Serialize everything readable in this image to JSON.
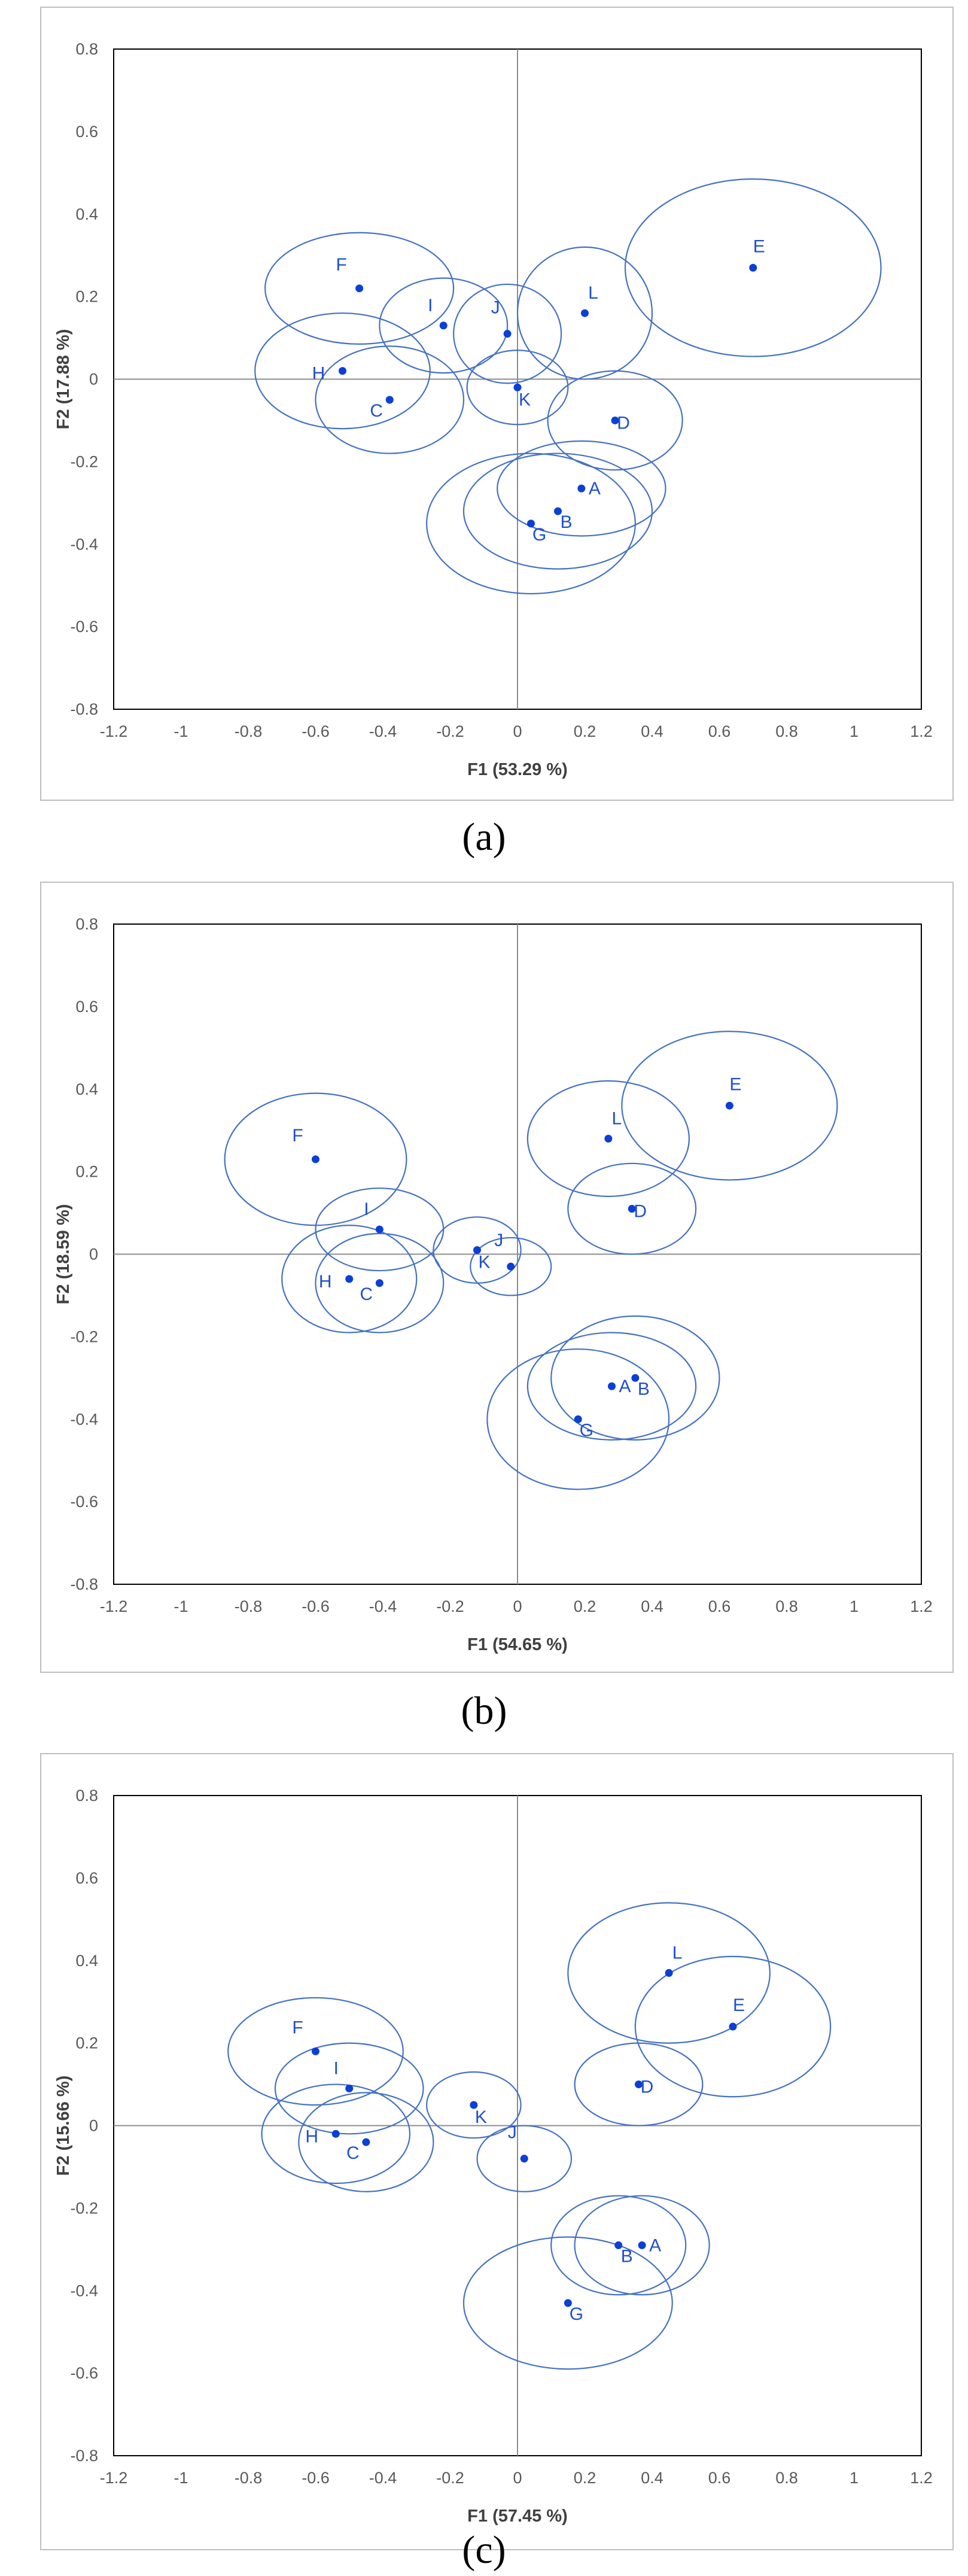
{
  "chart_data": [
    {
      "type": "scatter",
      "caption": "(a)",
      "xlabel": "F1 (53.29 %)",
      "ylabel": "F2 (17.88 %)",
      "xlim": [
        -1.2,
        1.2
      ],
      "ylim": [
        -0.8,
        0.8
      ],
      "xticks": [
        "-1.2",
        "-1",
        "-0.8",
        "-0.6",
        "-0.4",
        "-0.2",
        "0",
        "0.2",
        "0.4",
        "0.6",
        "0.8",
        "1",
        "1.2"
      ],
      "yticks": [
        "-0.8",
        "-0.6",
        "-0.4",
        "-0.2",
        "0",
        "0.2",
        "0.4",
        "0.6",
        "0.8"
      ],
      "points": [
        {
          "label": "A",
          "x": 0.19,
          "y": -0.265,
          "rx": 0.25,
          "ry": 0.115
        },
        {
          "label": "B",
          "x": 0.12,
          "y": -0.32,
          "rx": 0.28,
          "ry": 0.14
        },
        {
          "label": "C",
          "x": -0.38,
          "y": -0.05,
          "rx": 0.22,
          "ry": 0.13
        },
        {
          "label": "D",
          "x": 0.29,
          "y": -0.1,
          "rx": 0.2,
          "ry": 0.12
        },
        {
          "label": "E",
          "x": 0.7,
          "y": 0.27,
          "rx": 0.38,
          "ry": 0.215
        },
        {
          "label": "F",
          "x": -0.47,
          "y": 0.22,
          "rx": 0.28,
          "ry": 0.135
        },
        {
          "label": "H",
          "x": -0.52,
          "y": 0.02,
          "rx": 0.26,
          "ry": 0.14
        },
        {
          "label": "I",
          "x": -0.22,
          "y": 0.13,
          "rx": 0.19,
          "ry": 0.115
        },
        {
          "label": "J",
          "x": -0.03,
          "y": 0.11,
          "rx": 0.16,
          "ry": 0.12
        },
        {
          "label": "G",
          "x": 0.04,
          "y": -0.35,
          "rx": 0.31,
          "ry": 0.17
        },
        {
          "label": "K",
          "x": 0.0,
          "y": -0.02,
          "rx": 0.15,
          "ry": 0.09
        },
        {
          "label": "L",
          "x": 0.2,
          "y": 0.16,
          "rx": 0.2,
          "ry": 0.16
        }
      ]
    },
    {
      "type": "scatter",
      "caption": "(b)",
      "xlabel": "F1 (54.65 %)",
      "ylabel": "F2 (18.59 %)",
      "xlim": [
        -1.2,
        1.2
      ],
      "ylim": [
        -0.8,
        0.8
      ],
      "xticks": [
        "-1.2",
        "-1",
        "-0.8",
        "-0.6",
        "-0.4",
        "-0.2",
        "0",
        "0.2",
        "0.4",
        "0.6",
        "0.8",
        "1",
        "1.2"
      ],
      "yticks": [
        "-0.8",
        "-0.6",
        "-0.4",
        "-0.2",
        "0",
        "0.2",
        "0.4",
        "0.6",
        "0.8"
      ],
      "points": [
        {
          "label": "A",
          "x": 0.28,
          "y": -0.32,
          "rx": 0.25,
          "ry": 0.13
        },
        {
          "label": "B",
          "x": 0.35,
          "y": -0.3,
          "rx": 0.25,
          "ry": 0.15
        },
        {
          "label": "C",
          "x": -0.41,
          "y": -0.07,
          "rx": 0.19,
          "ry": 0.12
        },
        {
          "label": "D",
          "x": 0.34,
          "y": 0.11,
          "rx": 0.19,
          "ry": 0.11
        },
        {
          "label": "E",
          "x": 0.63,
          "y": 0.36,
          "rx": 0.32,
          "ry": 0.18
        },
        {
          "label": "F",
          "x": -0.6,
          "y": 0.23,
          "rx": 0.27,
          "ry": 0.16
        },
        {
          "label": "G",
          "x": 0.18,
          "y": -0.4,
          "rx": 0.27,
          "ry": 0.17
        },
        {
          "label": "H",
          "x": -0.5,
          "y": -0.06,
          "rx": 0.2,
          "ry": 0.13
        },
        {
          "label": "I",
          "x": -0.41,
          "y": 0.06,
          "rx": 0.19,
          "ry": 0.1
        },
        {
          "label": "J",
          "x": -0.02,
          "y": -0.03,
          "rx": 0.12,
          "ry": 0.07
        },
        {
          "label": "K",
          "x": -0.12,
          "y": 0.01,
          "rx": 0.13,
          "ry": 0.08
        },
        {
          "label": "L",
          "x": 0.27,
          "y": 0.28,
          "rx": 0.24,
          "ry": 0.14
        }
      ]
    },
    {
      "type": "scatter",
      "caption": "(c)",
      "xlabel": "F1 (57.45 %)",
      "ylabel": "F2 (15.66 %)",
      "xlim": [
        -1.2,
        1.2
      ],
      "ylim": [
        -0.8,
        0.8
      ],
      "xticks": [
        "-1.2",
        "-1",
        "-0.8",
        "-0.6",
        "-0.4",
        "-0.2",
        "0",
        "0.2",
        "0.4",
        "0.6",
        "0.8",
        "1",
        "1.2"
      ],
      "yticks": [
        "-0.8",
        "-0.6",
        "-0.4",
        "-0.2",
        "0",
        "0.2",
        "0.4",
        "0.6",
        "0.8"
      ],
      "points": [
        {
          "label": "A",
          "x": 0.37,
          "y": -0.29,
          "rx": 0.2,
          "ry": 0.12
        },
        {
          "label": "B",
          "x": 0.3,
          "y": -0.29,
          "rx": 0.2,
          "ry": 0.12
        },
        {
          "label": "C",
          "x": -0.45,
          "y": -0.04,
          "rx": 0.2,
          "ry": 0.12
        },
        {
          "label": "D",
          "x": 0.36,
          "y": 0.1,
          "rx": 0.19,
          "ry": 0.1
        },
        {
          "label": "E",
          "x": 0.64,
          "y": 0.24,
          "rx": 0.29,
          "ry": 0.17
        },
        {
          "label": "F",
          "x": -0.6,
          "y": 0.18,
          "rx": 0.26,
          "ry": 0.13
        },
        {
          "label": "G",
          "x": 0.15,
          "y": -0.43,
          "rx": 0.31,
          "ry": 0.16
        },
        {
          "label": "H",
          "x": -0.54,
          "y": -0.02,
          "rx": 0.22,
          "ry": 0.12
        },
        {
          "label": "I",
          "x": -0.5,
          "y": 0.09,
          "rx": 0.22,
          "ry": 0.11
        },
        {
          "label": "J",
          "x": 0.02,
          "y": -0.08,
          "rx": 0.14,
          "ry": 0.08
        },
        {
          "label": "K",
          "x": -0.13,
          "y": 0.05,
          "rx": 0.14,
          "ry": 0.08
        },
        {
          "label": "L",
          "x": 0.45,
          "y": 0.37,
          "rx": 0.3,
          "ry": 0.17
        }
      ]
    }
  ]
}
